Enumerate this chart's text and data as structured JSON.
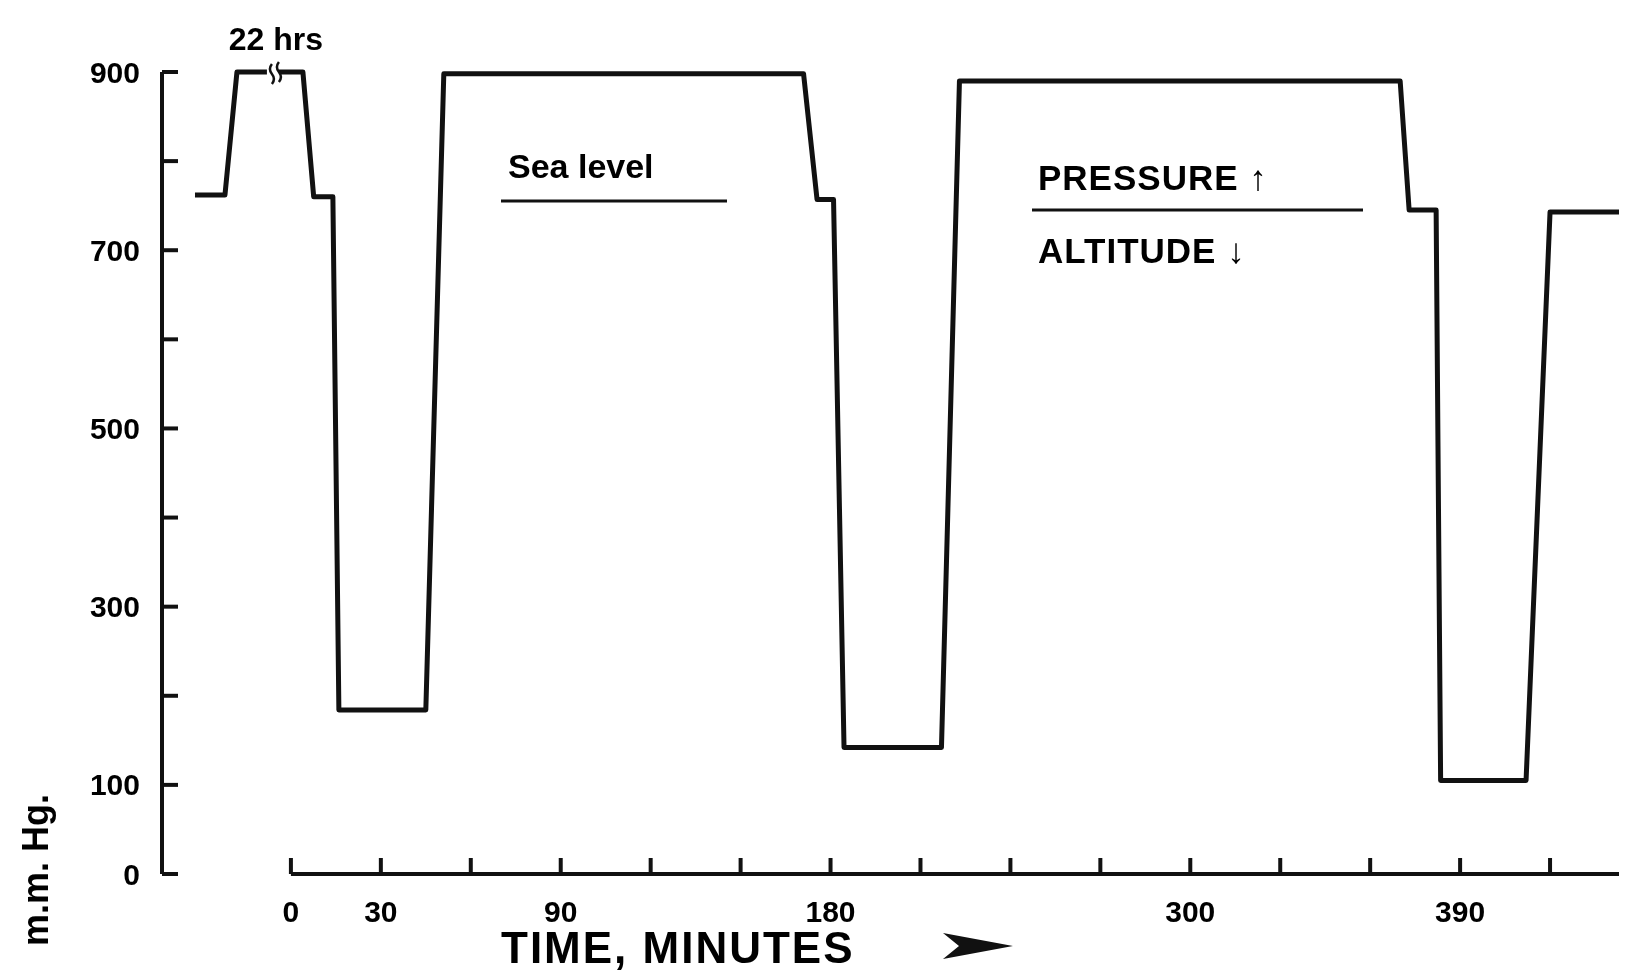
{
  "chart_data": {
    "type": "line",
    "xlabel": "TIME, MINUTES",
    "ylabel": "m.m. Hg.",
    "x": [
      -32,
      -22,
      -18,
      -8,
      -6,
      -4,
      4,
      7.6,
      14,
      16,
      45,
      51,
      171,
      175.5,
      181,
      184.5,
      217,
      223,
      370,
      373,
      382,
      383.5,
      412,
      420,
      443
    ],
    "series": [
      {
        "color": "#111111",
        "values": [
          762,
          762,
          900,
          900,
          null,
          900,
          900,
          760,
          760,
          184,
          184,
          898,
          898,
          757,
          757,
          142,
          142,
          890,
          890,
          745,
          745,
          105,
          105,
          743,
          743
        ]
      }
    ],
    "xlim": [
      -43,
      443
    ],
    "ylim": [
      0,
      900
    ],
    "xticks": [
      0,
      30,
      {
        "value": 60,
        "label": null
      },
      90,
      {
        "value": 120,
        "label": null
      },
      {
        "value": 150,
        "label": null
      },
      180,
      {
        "value": 210,
        "label": null
      },
      {
        "value": 240,
        "label": null
      },
      {
        "value": 270,
        "label": null
      },
      300,
      {
        "value": 330,
        "label": null
      },
      {
        "value": 360,
        "label": null
      },
      390,
      {
        "value": 420,
        "label": null
      }
    ],
    "yticks": [
      0,
      100,
      {
        "value": 200,
        "label": null
      },
      300,
      {
        "value": 400,
        "label": null
      },
      500,
      {
        "value": 600,
        "label": null
      },
      700,
      {
        "value": 800,
        "label": null
      },
      900
    ],
    "annotations": [
      {
        "text": "22 hrs",
        "x": -5,
        "y": 900
      },
      "Sea level",
      "PRESSURE ↑",
      "ALTITUDE ↓"
    ],
    "marker": "none",
    "line_style": "solid",
    "grid": false
  }
}
